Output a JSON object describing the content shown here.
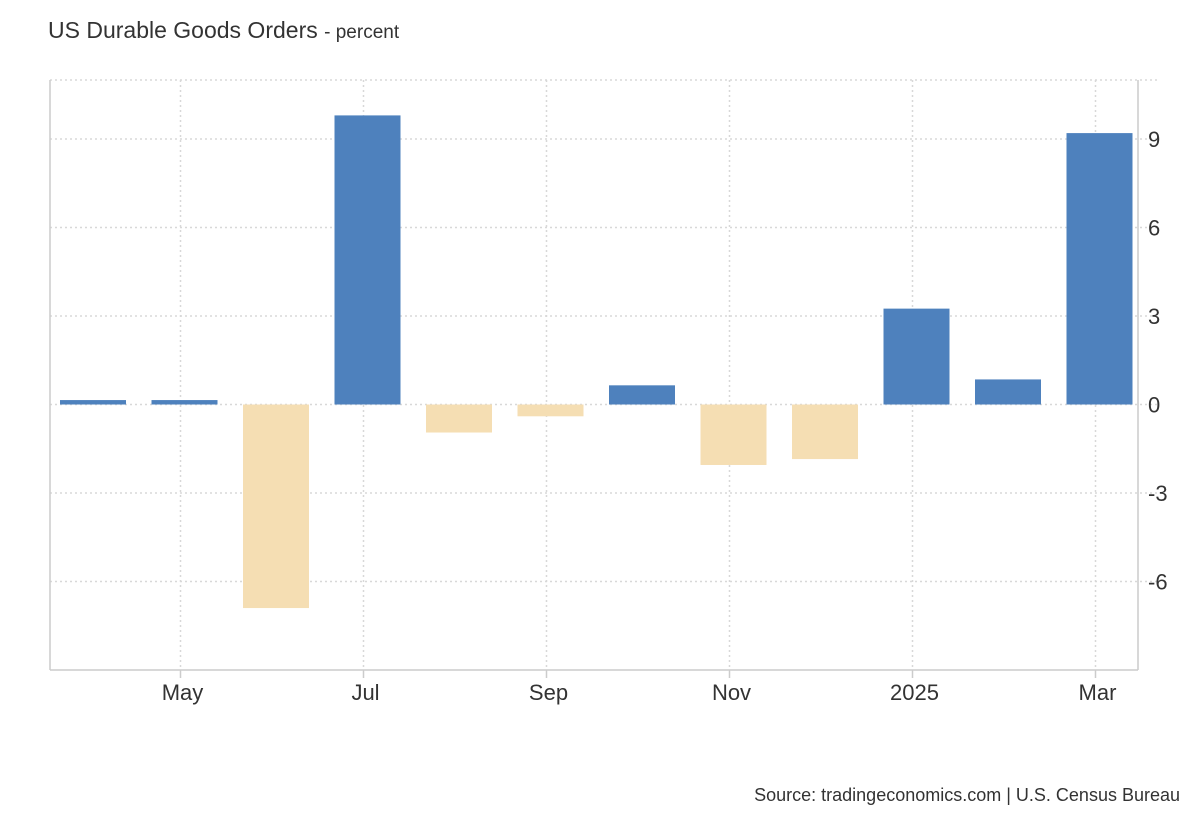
{
  "header": {
    "title": "US Durable Goods Orders",
    "unit": "- percent"
  },
  "footer": {
    "source": "Source: tradingeconomics.com | U.S. Census Bureau"
  },
  "chart_data": {
    "type": "bar",
    "categories": [
      "2024-04",
      "2024-05",
      "2024-06",
      "2024-07",
      "2024-08",
      "2024-09",
      "2024-10",
      "2024-11",
      "2024-12",
      "2025-01",
      "2025-02",
      "2025-03"
    ],
    "values": [
      0.15,
      0.15,
      -6.9,
      9.8,
      -0.95,
      -0.4,
      0.65,
      -2.05,
      -1.85,
      3.25,
      0.85,
      9.2
    ],
    "title": "US Durable Goods Orders",
    "unit": "percent",
    "xlabel": "",
    "ylabel": "",
    "ylim": [
      -9,
      11
    ],
    "y_ticks": [
      9,
      6,
      3,
      0,
      -3,
      -6
    ],
    "x_ticks": [
      {
        "label": "May",
        "category": "2024-05"
      },
      {
        "label": "Jul",
        "category": "2024-07"
      },
      {
        "label": "Sep",
        "category": "2024-09"
      },
      {
        "label": "Nov",
        "category": "2024-11"
      },
      {
        "label": "2025",
        "category": "2025-01"
      },
      {
        "label": "Mar",
        "category": "2025-03"
      }
    ],
    "grid": true,
    "y_axis_position": "right",
    "colors": {
      "positive": "#4e81bd",
      "negative": "#f5deb3",
      "grid": "#d8d8d8",
      "axis": "#cccccc"
    }
  }
}
